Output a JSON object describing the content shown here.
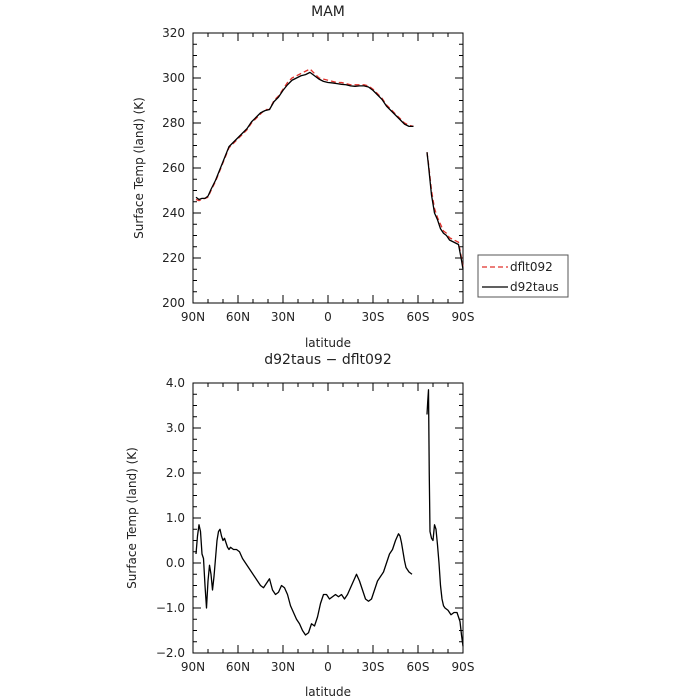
{
  "chart_data": [
    {
      "type": "line",
      "title": "MAM",
      "xlabel": "latitude",
      "ylabel": "Surface Temp (land) (K)",
      "xlim": [
        90,
        -90
      ],
      "ylim": [
        200,
        320
      ],
      "xticks": [
        90,
        60,
        30,
        0,
        -30,
        -60,
        -90
      ],
      "xtick_labels": [
        "90N",
        "60N",
        "30N",
        "0",
        "30S",
        "60S",
        "90S"
      ],
      "yticks": [
        200,
        220,
        240,
        260,
        280,
        300,
        320
      ],
      "ytick_labels": [
        "200",
        "220",
        "240",
        "260",
        "280",
        "300",
        "320"
      ],
      "legend_position": "right",
      "colors": {
        "dflt092": "#e0302a",
        "d92taus": "#000000"
      },
      "series": [
        {
          "name": "dflt092",
          "segments": [
            [
              [
                88,
                246
              ],
              [
                86,
                245.5
              ],
              [
                84,
                246
              ],
              [
                82,
                246.5
              ],
              [
                80,
                247
              ],
              [
                78,
                250
              ],
              [
                75,
                254
              ],
              [
                72,
                259
              ],
              [
                69,
                264
              ],
              [
                66,
                269
              ],
              [
                63,
                271
              ],
              [
                60,
                273
              ],
              [
                57,
                275
              ],
              [
                54,
                277
              ],
              [
                51,
                280
              ],
              [
                48,
                282
              ],
              [
                45,
                284
              ],
              [
                42,
                286
              ],
              [
                39,
                286
              ],
              [
                36,
                290
              ],
              [
                33,
                292
              ],
              [
                30,
                295
              ],
              [
                27,
                298
              ],
              [
                24,
                300
              ],
              [
                21,
                301
              ],
              [
                18,
                302
              ],
              [
                15,
                303
              ],
              [
                12,
                304
              ],
              [
                9,
                302
              ],
              [
                6,
                300
              ],
              [
                3,
                299.5
              ],
              [
                0,
                299
              ],
              [
                -3,
                298.5
              ],
              [
                -6,
                298
              ],
              [
                -9,
                298
              ],
              [
                -12,
                297.5
              ],
              [
                -15,
                297
              ],
              [
                -18,
                297
              ],
              [
                -21,
                297
              ],
              [
                -24,
                297
              ],
              [
                -27,
                296.5
              ],
              [
                -30,
                295
              ],
              [
                -33,
                293
              ],
              [
                -36,
                291
              ],
              [
                -39,
                288
              ],
              [
                -42,
                286
              ],
              [
                -45,
                284
              ],
              [
                -48,
                282
              ],
              [
                -51,
                280
              ],
              [
                -54,
                279
              ],
              [
                -57,
                278.5
              ]
            ],
            [
              [
                -66,
                267
              ],
              [
                -67,
                262
              ],
              [
                -69,
                250
              ],
              [
                -71,
                242
              ],
              [
                -73,
                238
              ],
              [
                -75,
                235
              ],
              [
                -77,
                232
              ],
              [
                -79,
                231
              ],
              [
                -81,
                229
              ],
              [
                -84,
                228
              ],
              [
                -87,
                227
              ],
              [
                -89,
                220
              ],
              [
                -90,
                216
              ]
            ]
          ]
        },
        {
          "name": "d92taus",
          "segments": [
            [
              [
                88,
                247
              ],
              [
                86,
                246
              ],
              [
                84,
                246.5
              ],
              [
                82,
                246.5
              ],
              [
                80,
                247.5
              ],
              [
                78,
                250.5
              ],
              [
                75,
                254.5
              ],
              [
                72,
                259.5
              ],
              [
                69,
                264.5
              ],
              [
                66,
                269.5
              ],
              [
                63,
                271.5
              ],
              [
                60,
                273.5
              ],
              [
                57,
                275.5
              ],
              [
                54,
                277.5
              ],
              [
                51,
                280.5
              ],
              [
                48,
                282.5
              ],
              [
                45,
                284.5
              ],
              [
                42,
                285.5
              ],
              [
                39,
                286
              ],
              [
                36,
                289.5
              ],
              [
                33,
                291.5
              ],
              [
                30,
                294.5
              ],
              [
                27,
                297
              ],
              [
                24,
                299
              ],
              [
                21,
                300
              ],
              [
                18,
                301
              ],
              [
                15,
                301.5
              ],
              [
                12,
                302.5
              ],
              [
                9,
                301
              ],
              [
                6,
                299.5
              ],
              [
                3,
                298.5
              ],
              [
                0,
                298
              ],
              [
                -3,
                297.8
              ],
              [
                -6,
                297.5
              ],
              [
                -9,
                297.2
              ],
              [
                -12,
                297
              ],
              [
                -15,
                296.5
              ],
              [
                -18,
                296.3
              ],
              [
                -21,
                296.5
              ],
              [
                -24,
                296.5
              ],
              [
                -27,
                296
              ],
              [
                -30,
                294.5
              ],
              [
                -33,
                292.5
              ],
              [
                -36,
                290.5
              ],
              [
                -39,
                287.5
              ],
              [
                -42,
                285.5
              ],
              [
                -45,
                283.5
              ],
              [
                -48,
                281.5
              ],
              [
                -51,
                279.5
              ],
              [
                -54,
                278.5
              ],
              [
                -57,
                278.5
              ]
            ],
            [
              [
                -66,
                267
              ],
              [
                -67,
                261
              ],
              [
                -69,
                248
              ],
              [
                -71,
                240
              ],
              [
                -73,
                237
              ],
              [
                -75,
                233
              ],
              [
                -77,
                231
              ],
              [
                -79,
                230
              ],
              [
                -81,
                228
              ],
              [
                -84,
                227
              ],
              [
                -87,
                226
              ],
              [
                -89,
                219
              ],
              [
                -90,
                215
              ]
            ]
          ]
        }
      ]
    },
    {
      "type": "line",
      "title": "d92taus − dflt092",
      "xlabel": "latitude",
      "ylabel": "Surface Temp (land) (K)",
      "xlim": [
        90,
        -90
      ],
      "ylim": [
        -2,
        4
      ],
      "xticks": [
        90,
        60,
        30,
        0,
        -30,
        -60,
        -90
      ],
      "xtick_labels": [
        "90N",
        "60N",
        "30N",
        "0",
        "30S",
        "60S",
        "90S"
      ],
      "yticks": [
        -2,
        -1,
        0,
        1,
        2,
        3,
        4
      ],
      "ytick_labels": [
        "−2.0",
        "−1.0",
        "0.0",
        "1.0",
        "2.0",
        "3.0",
        "4.0"
      ],
      "colors": {
        "difference": "#000000"
      },
      "series": [
        {
          "segments": [
            [
              [
                88,
                0.2
              ],
              [
                87,
                0.6
              ],
              [
                86,
                0.85
              ],
              [
                85,
                0.7
              ],
              [
                84,
                0.2
              ],
              [
                83,
                0.1
              ],
              [
                82,
                -0.5
              ],
              [
                81,
                -1.0
              ],
              [
                80,
                -0.4
              ],
              [
                79,
                -0.05
              ],
              [
                78,
                -0.25
              ],
              [
                77,
                -0.6
              ],
              [
                76,
                -0.3
              ],
              [
                75,
                0.1
              ],
              [
                74,
                0.5
              ],
              [
                73,
                0.7
              ],
              [
                72,
                0.75
              ],
              [
                71,
                0.6
              ],
              [
                70,
                0.5
              ],
              [
                69,
                0.55
              ],
              [
                68,
                0.45
              ],
              [
                67,
                0.35
              ],
              [
                66,
                0.3
              ],
              [
                65,
                0.35
              ],
              [
                63,
                0.3
              ],
              [
                61,
                0.3
              ],
              [
                59,
                0.25
              ],
              [
                57,
                0.1
              ],
              [
                55,
                0.0
              ],
              [
                53,
                -0.1
              ],
              [
                51,
                -0.2
              ],
              [
                49,
                -0.3
              ],
              [
                47,
                -0.4
              ],
              [
                45,
                -0.5
              ],
              [
                43,
                -0.55
              ],
              [
                41,
                -0.45
              ],
              [
                39,
                -0.35
              ],
              [
                37,
                -0.6
              ],
              [
                35,
                -0.7
              ],
              [
                33,
                -0.65
              ],
              [
                31,
                -0.5
              ],
              [
                29,
                -0.55
              ],
              [
                27,
                -0.7
              ],
              [
                25,
                -0.95
              ],
              [
                23,
                -1.1
              ],
              [
                21,
                -1.25
              ],
              [
                19,
                -1.35
              ],
              [
                17,
                -1.5
              ],
              [
                15,
                -1.6
              ],
              [
                13,
                -1.55
              ],
              [
                11,
                -1.35
              ],
              [
                9,
                -1.4
              ],
              [
                7,
                -1.2
              ],
              [
                5,
                -0.9
              ],
              [
                3,
                -0.7
              ],
              [
                1,
                -0.7
              ],
              [
                -1,
                -0.8
              ],
              [
                -3,
                -0.75
              ],
              [
                -5,
                -0.7
              ],
              [
                -7,
                -0.75
              ],
              [
                -9,
                -0.7
              ],
              [
                -11,
                -0.8
              ],
              [
                -13,
                -0.7
              ],
              [
                -15,
                -0.55
              ],
              [
                -17,
                -0.4
              ],
              [
                -19,
                -0.25
              ],
              [
                -21,
                -0.4
              ],
              [
                -23,
                -0.6
              ],
              [
                -25,
                -0.8
              ],
              [
                -27,
                -0.85
              ],
              [
                -29,
                -0.8
              ],
              [
                -31,
                -0.6
              ],
              [
                -33,
                -0.4
              ],
              [
                -35,
                -0.3
              ],
              [
                -37,
                -0.2
              ],
              [
                -39,
                0.0
              ],
              [
                -41,
                0.2
              ],
              [
                -43,
                0.3
              ],
              [
                -45,
                0.5
              ],
              [
                -47,
                0.65
              ],
              [
                -48,
                0.6
              ],
              [
                -49,
                0.45
              ],
              [
                -50,
                0.25
              ],
              [
                -51,
                0.05
              ],
              [
                -52,
                -0.1
              ],
              [
                -54,
                -0.2
              ],
              [
                -56,
                -0.25
              ]
            ],
            [
              [
                -66,
                3.3
              ],
              [
                -66.5,
                3.6
              ],
              [
                -67,
                3.85
              ],
              [
                -67.5,
                2.0
              ],
              [
                -68,
                0.7
              ],
              [
                -69,
                0.55
              ],
              [
                -70,
                0.5
              ],
              [
                -71,
                0.85
              ],
              [
                -72,
                0.75
              ],
              [
                -73,
                0.4
              ],
              [
                -74,
                0.0
              ],
              [
                -75,
                -0.5
              ],
              [
                -76,
                -0.8
              ],
              [
                -77,
                -0.95
              ],
              [
                -78,
                -1.0
              ],
              [
                -80,
                -1.05
              ],
              [
                -82,
                -1.15
              ],
              [
                -84,
                -1.1
              ],
              [
                -86,
                -1.1
              ],
              [
                -88,
                -1.3
              ],
              [
                -89,
                -1.6
              ],
              [
                -90,
                -1.85
              ]
            ]
          ]
        }
      ]
    }
  ]
}
